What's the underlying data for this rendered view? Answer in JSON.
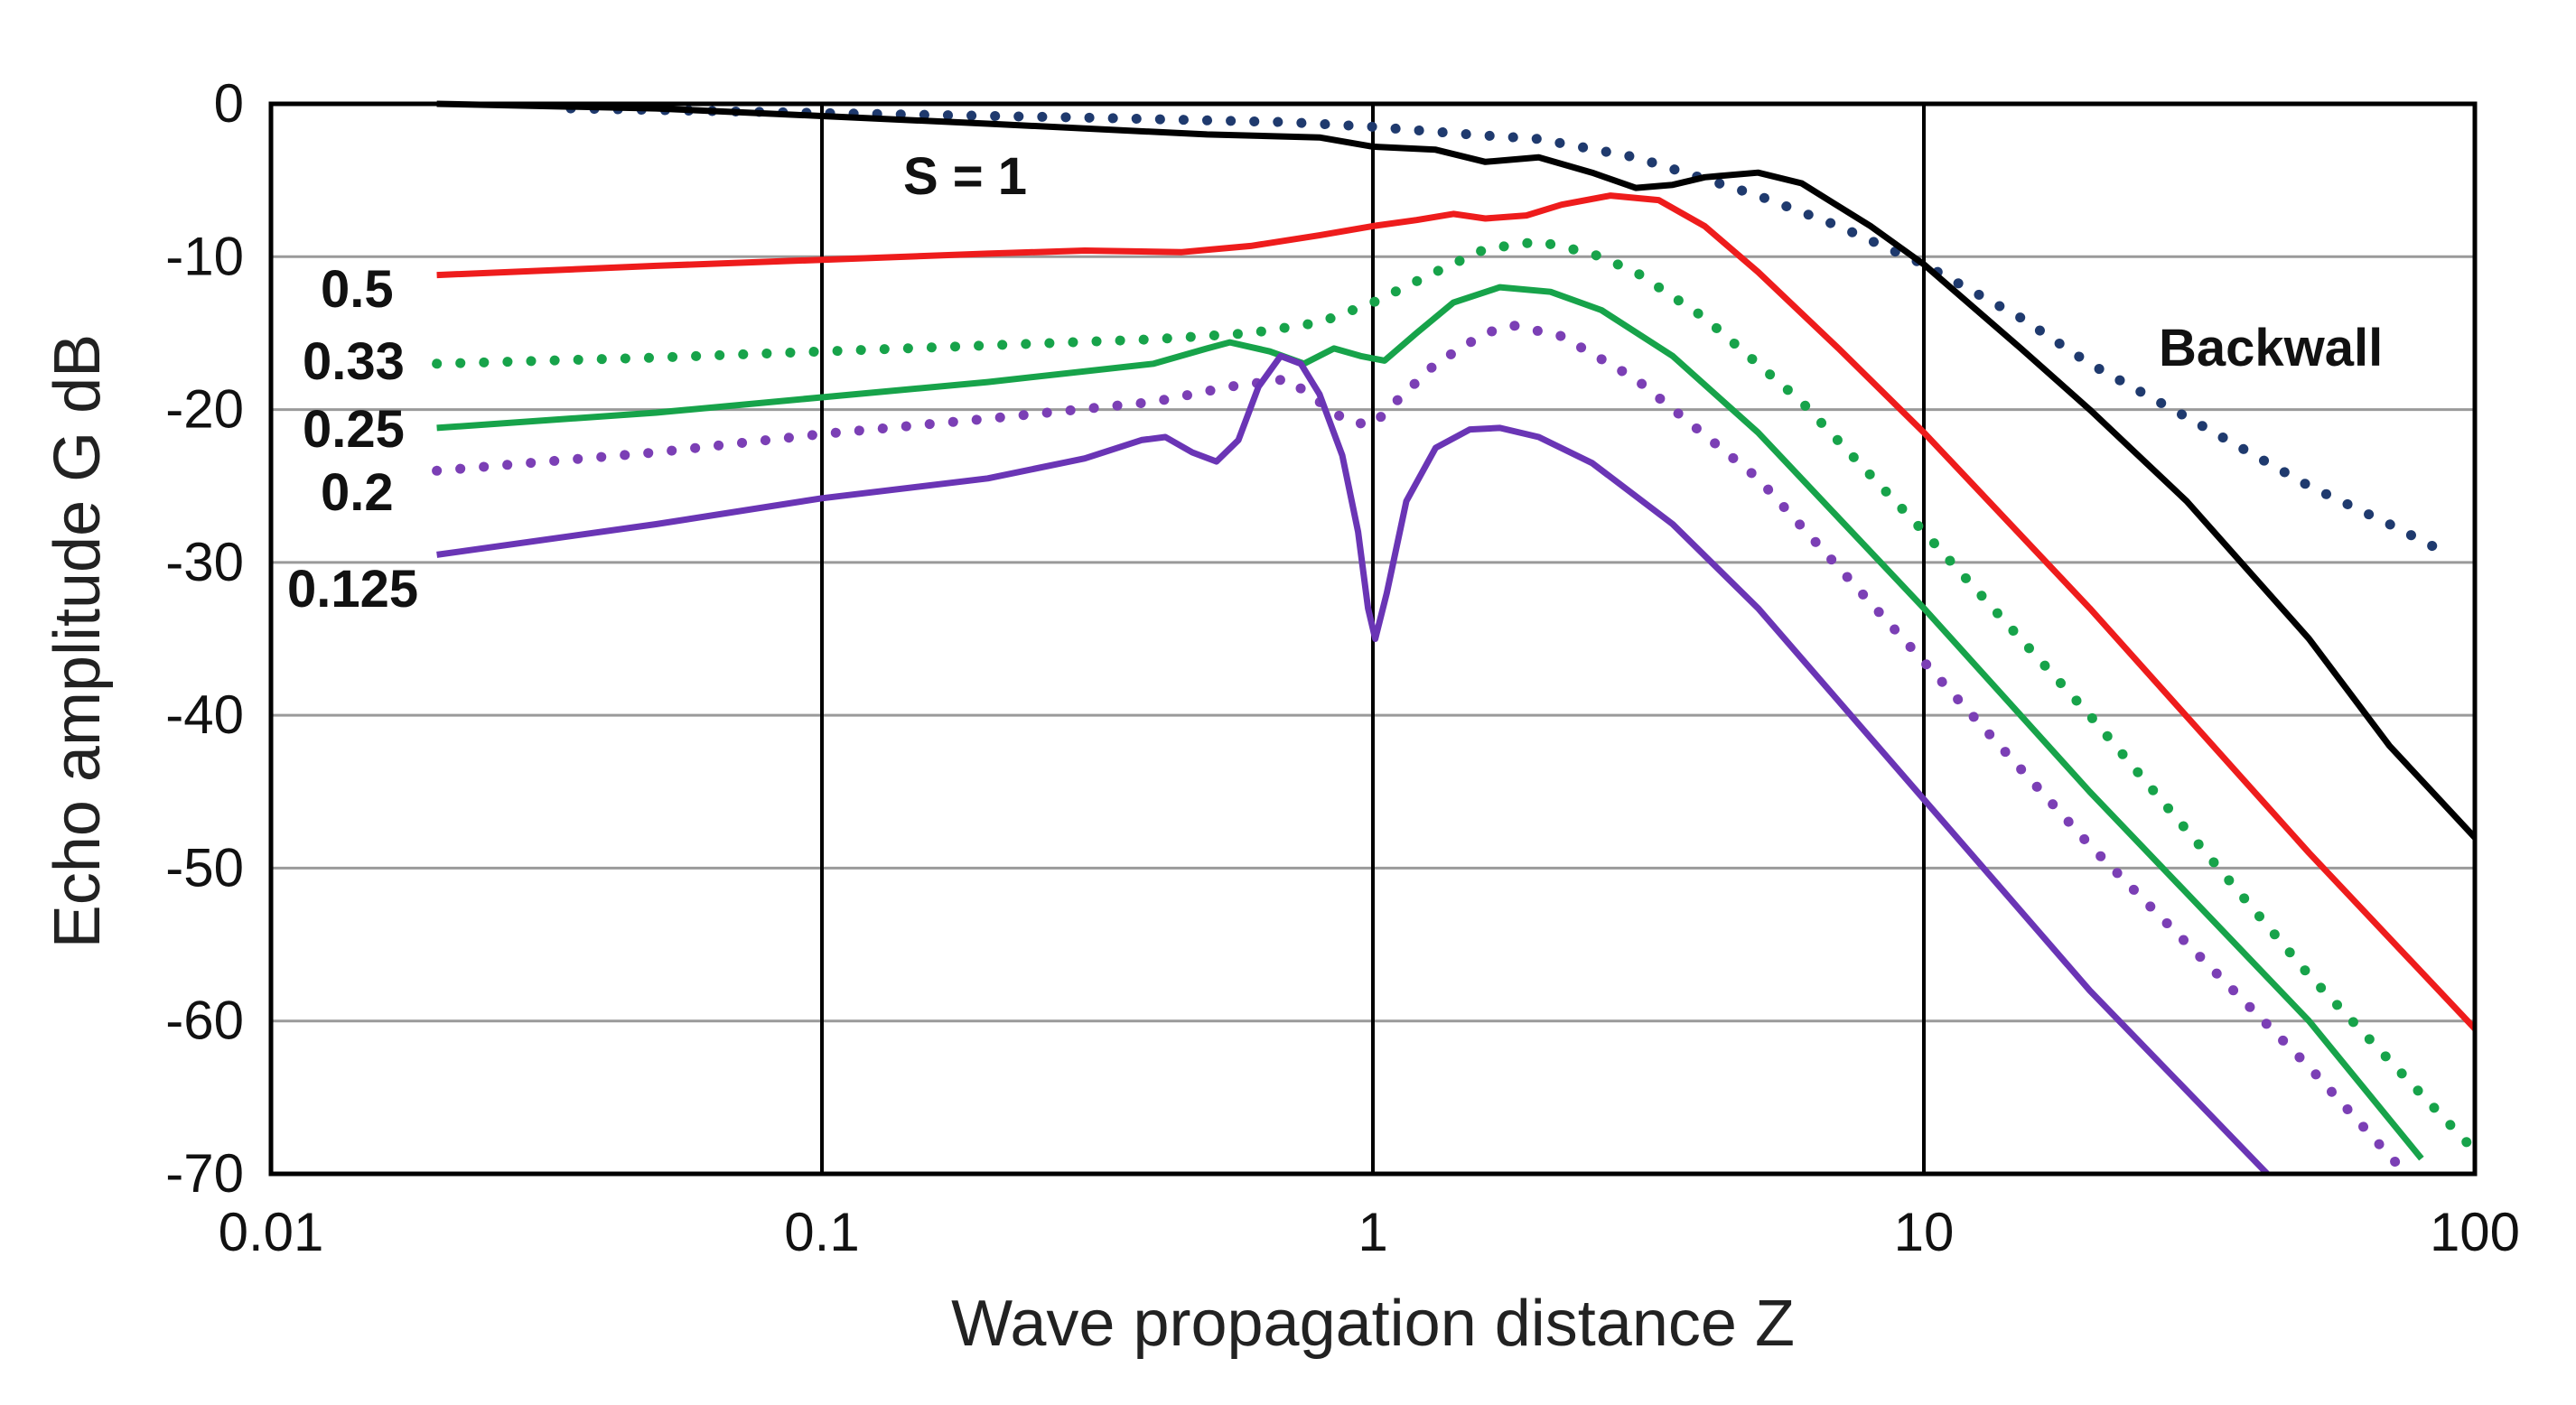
{
  "chart_data": {
    "type": "line",
    "title": "",
    "xlabel": "Wave propagation distance  Z",
    "ylabel": "Echo amplitude  G  dB",
    "xscale": "log",
    "xlim": [
      0.01,
      100
    ],
    "ylim": [
      -70,
      0
    ],
    "x_ticks": [
      0.01,
      0.1,
      1,
      10,
      100
    ],
    "x_tick_labels": [
      "0.01",
      "0.1",
      "1",
      "10",
      "100"
    ],
    "y_ticks": [
      0,
      -10,
      -20,
      -30,
      -40,
      -50,
      -60,
      -70
    ],
    "y_tick_labels": [
      "0",
      "-10",
      "-20",
      "-30",
      "-40",
      "-50",
      "-60",
      "-70"
    ],
    "grid": true,
    "series": [
      {
        "name": "Backwall",
        "label": "Backwall",
        "color": "#1f3a6e",
        "style": "dotted",
        "points": [
          [
            0.035,
            -0.3
          ],
          [
            0.1,
            -0.6
          ],
          [
            0.3,
            -0.9
          ],
          [
            0.7,
            -1.2
          ],
          [
            1,
            -1.5
          ],
          [
            1.5,
            -2.0
          ],
          [
            2.0,
            -2.3
          ],
          [
            3.0,
            -3.5
          ],
          [
            5.0,
            -6.0
          ],
          [
            7.0,
            -8.0
          ],
          [
            10.0,
            -10.5
          ],
          [
            15.0,
            -14.0
          ],
          [
            20.0,
            -17.0
          ],
          [
            30.0,
            -20.5
          ],
          [
            50.0,
            -25.0
          ],
          [
            70.0,
            -27.5
          ],
          [
            90.0,
            -29.5
          ]
        ]
      },
      {
        "name": "S = 1",
        "label": "S = 1",
        "color": "#000000",
        "style": "solid",
        "points": [
          [
            0.02,
            0
          ],
          [
            0.05,
            -0.3
          ],
          [
            0.1,
            -0.8
          ],
          [
            0.2,
            -1.3
          ],
          [
            0.5,
            -2.0
          ],
          [
            0.8,
            -2.2
          ],
          [
            1,
            -2.8
          ],
          [
            1.3,
            -3.0
          ],
          [
            1.6,
            -3.8
          ],
          [
            2.0,
            -3.5
          ],
          [
            2.5,
            -4.5
          ],
          [
            3.0,
            -5.5
          ],
          [
            3.5,
            -5.3
          ],
          [
            4.0,
            -4.8
          ],
          [
            5.0,
            -4.5
          ],
          [
            6.0,
            -5.2
          ],
          [
            8.0,
            -8.0
          ],
          [
            10.0,
            -10.5
          ],
          [
            15.0,
            -16.0
          ],
          [
            20.0,
            -20.0
          ],
          [
            30.0,
            -26.0
          ],
          [
            50.0,
            -35.0
          ],
          [
            70.0,
            -42.0
          ],
          [
            100.0,
            -48.0
          ]
        ]
      },
      {
        "name": "0.5",
        "label": "0.5",
        "color": "#ee1c1c",
        "style": "solid",
        "points": [
          [
            0.02,
            -11.2
          ],
          [
            0.05,
            -10.6
          ],
          [
            0.1,
            -10.2
          ],
          [
            0.2,
            -9.8
          ],
          [
            0.3,
            -9.6
          ],
          [
            0.45,
            -9.7
          ],
          [
            0.6,
            -9.3
          ],
          [
            0.8,
            -8.6
          ],
          [
            1.0,
            -8.0
          ],
          [
            1.2,
            -7.6
          ],
          [
            1.4,
            -7.2
          ],
          [
            1.6,
            -7.5
          ],
          [
            1.9,
            -7.3
          ],
          [
            2.2,
            -6.6
          ],
          [
            2.7,
            -6.0
          ],
          [
            3.3,
            -6.3
          ],
          [
            4.0,
            -8.0
          ],
          [
            5.0,
            -11.0
          ],
          [
            7.0,
            -16.0
          ],
          [
            10.0,
            -21.5
          ],
          [
            20.0,
            -33.0
          ],
          [
            50.0,
            -49.0
          ],
          [
            100.0,
            -60.5
          ]
        ]
      },
      {
        "name": "0.33",
        "label": "0.33",
        "color": "#17a34a",
        "style": "dotted",
        "points": [
          [
            0.02,
            -17.0
          ],
          [
            0.05,
            -16.6
          ],
          [
            0.1,
            -16.2
          ],
          [
            0.2,
            -15.8
          ],
          [
            0.4,
            -15.4
          ],
          [
            0.6,
            -15.0
          ],
          [
            0.8,
            -14.3
          ],
          [
            1.0,
            -13.0
          ],
          [
            1.3,
            -11.0
          ],
          [
            1.6,
            -9.5
          ],
          [
            2.0,
            -9.0
          ],
          [
            2.5,
            -9.8
          ],
          [
            3.0,
            -11.0
          ],
          [
            4.0,
            -14.0
          ],
          [
            6.0,
            -19.5
          ],
          [
            10.0,
            -28.0
          ],
          [
            20.0,
            -40.0
          ],
          [
            50.0,
            -57.0
          ],
          [
            100.0,
            -68.5
          ]
        ]
      },
      {
        "name": "0.25",
        "label": "0.25",
        "color": "#17a34a",
        "style": "solid",
        "points": [
          [
            0.02,
            -21.2
          ],
          [
            0.05,
            -20.2
          ],
          [
            0.1,
            -19.2
          ],
          [
            0.2,
            -18.2
          ],
          [
            0.4,
            -17.0
          ],
          [
            0.5,
            -16.0
          ],
          [
            0.55,
            -15.6
          ],
          [
            0.65,
            -16.2
          ],
          [
            0.75,
            -17.0
          ],
          [
            0.85,
            -16.0
          ],
          [
            0.95,
            -16.5
          ],
          [
            1.05,
            -16.8
          ],
          [
            1.2,
            -15.0
          ],
          [
            1.4,
            -13.0
          ],
          [
            1.7,
            -12.0
          ],
          [
            2.1,
            -12.3
          ],
          [
            2.6,
            -13.5
          ],
          [
            3.5,
            -16.5
          ],
          [
            5.0,
            -21.5
          ],
          [
            10.0,
            -33.0
          ],
          [
            20.0,
            -45.0
          ],
          [
            50.0,
            -60.0
          ],
          [
            80.0,
            -69.0
          ]
        ]
      },
      {
        "name": "0.2",
        "label": "0.2",
        "color": "#7b3fb5",
        "style": "dotted",
        "points": [
          [
            0.02,
            -24.0
          ],
          [
            0.05,
            -22.8
          ],
          [
            0.1,
            -21.6
          ],
          [
            0.2,
            -20.6
          ],
          [
            0.4,
            -19.5
          ],
          [
            0.55,
            -18.5
          ],
          [
            0.7,
            -18.0
          ],
          [
            0.8,
            -19.5
          ],
          [
            0.9,
            -20.8
          ],
          [
            1.0,
            -21.0
          ],
          [
            1.1,
            -19.5
          ],
          [
            1.3,
            -17.0
          ],
          [
            1.6,
            -15.0
          ],
          [
            1.8,
            -14.5
          ],
          [
            2.2,
            -15.2
          ],
          [
            3.0,
            -18.0
          ],
          [
            5.0,
            -24.5
          ],
          [
            10.0,
            -36.5
          ],
          [
            20.0,
            -48.5
          ],
          [
            50.0,
            -63.0
          ],
          [
            75.0,
            -70.0
          ]
        ]
      },
      {
        "name": "0.125",
        "label": "0.125",
        "color": "#6a35b5",
        "style": "solid",
        "points": [
          [
            0.02,
            -29.5
          ],
          [
            0.05,
            -27.5
          ],
          [
            0.1,
            -25.8
          ],
          [
            0.2,
            -24.5
          ],
          [
            0.3,
            -23.2
          ],
          [
            0.38,
            -22.0
          ],
          [
            0.42,
            -21.8
          ],
          [
            0.47,
            -22.8
          ],
          [
            0.52,
            -23.4
          ],
          [
            0.57,
            -22.0
          ],
          [
            0.62,
            -18.5
          ],
          [
            0.68,
            -16.5
          ],
          [
            0.74,
            -17.0
          ],
          [
            0.8,
            -19.0
          ],
          [
            0.88,
            -23.0
          ],
          [
            0.94,
            -28.0
          ],
          [
            0.98,
            -33.0
          ],
          [
            1.01,
            -35.0
          ],
          [
            1.06,
            -32.0
          ],
          [
            1.15,
            -26.0
          ],
          [
            1.3,
            -22.5
          ],
          [
            1.5,
            -21.3
          ],
          [
            1.7,
            -21.2
          ],
          [
            2.0,
            -21.8
          ],
          [
            2.5,
            -23.5
          ],
          [
            3.5,
            -27.5
          ],
          [
            5.0,
            -33.0
          ],
          [
            10.0,
            -45.5
          ],
          [
            20.0,
            -58.0
          ],
          [
            42.0,
            -70.0
          ]
        ]
      }
    ]
  }
}
